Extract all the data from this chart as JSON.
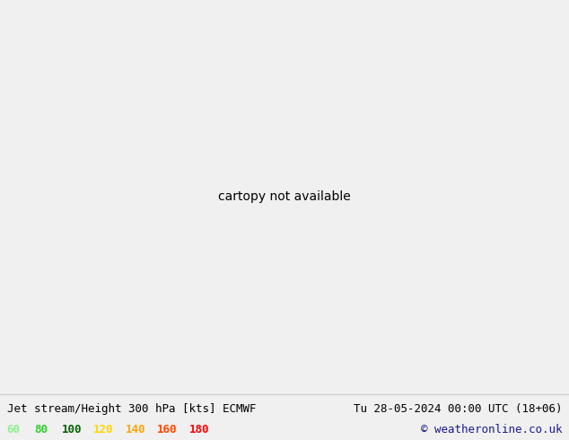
{
  "title_left": "Jet stream/Height 300 hPa [kts] ECMWF",
  "title_right": "Tu 28-05-2024 00:00 UTC (18+06)",
  "copyright": "© weatheronline.co.uk",
  "legend_values": [
    60,
    80,
    100,
    120,
    140,
    160,
    180
  ],
  "legend_colors": [
    "#90ee90",
    "#32cd32",
    "#006400",
    "#ffd700",
    "#ffa500",
    "#ff4500",
    "#ff0000"
  ],
  "bg_color": "#f0f0f0",
  "land_color": "#d2d2d2",
  "ocean_color": "#e8e8e8",
  "border_color": "#aaaaaa",
  "font_family": "monospace",
  "title_fontsize": 9,
  "legend_fontsize": 9,
  "figsize": [
    6.34,
    4.9
  ],
  "dpi": 100,
  "contour_color": "black",
  "contour_linewidth": 1.1,
  "bottom_bar_color": "#f0f0f0",
  "map_extent": [
    -175,
    20,
    15,
    85
  ],
  "jet_speed_levels": [
    60,
    80,
    100,
    120,
    140,
    160,
    180
  ],
  "jet_fill_colors": [
    "#b8f0b8",
    "#7dd87d",
    "#32a832",
    "#c8e832",
    "#ffd700",
    "#ffa500",
    "#ff4500"
  ]
}
